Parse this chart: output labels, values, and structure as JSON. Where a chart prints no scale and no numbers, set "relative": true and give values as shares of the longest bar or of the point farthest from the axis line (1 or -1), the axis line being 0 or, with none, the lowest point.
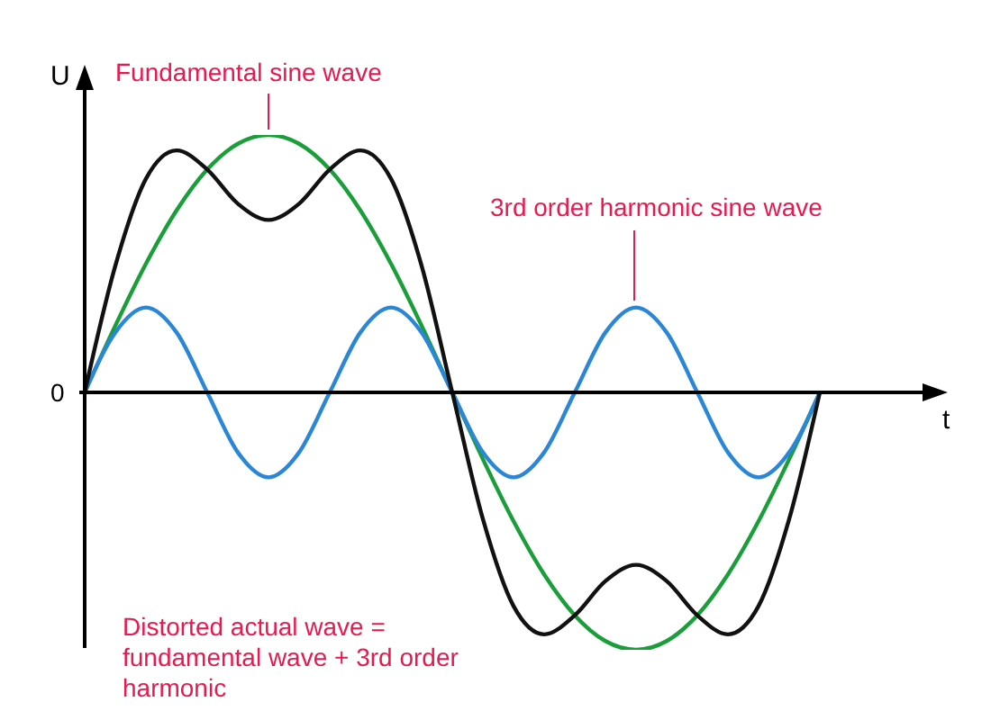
{
  "chart_data": {
    "type": "line",
    "relative": true,
    "xlabel": "t",
    "ylabel": "U",
    "annotations": [
      "0",
      "Fundamental sine wave",
      "3rd order harmonic sine wave",
      "Distorted actual wave = fundamental wave + 3rd order harmonic"
    ],
    "categories": [
      null,
      null,
      null,
      null,
      null,
      null,
      null,
      null,
      null,
      null,
      null,
      null,
      null,
      null,
      null,
      null,
      null,
      null,
      null,
      null,
      null,
      null,
      null,
      null,
      null
    ],
    "series": [
      {
        "color": "#1a9e3a",
        "values": [
          0,
          0.259,
          0.5,
          0.707,
          0.866,
          0.966,
          1,
          0.966,
          0.866,
          0.707,
          0.5,
          0.259,
          0,
          -0.259,
          -0.5,
          -0.707,
          -0.866,
          -0.966,
          -1,
          -0.966,
          -0.866,
          -0.707,
          -0.5,
          -0.259,
          0
        ]
      },
      {
        "color": "#2a86d6",
        "values": [
          0,
          0.233,
          0.33,
          0.233,
          0,
          -0.233,
          -0.33,
          -0.233,
          0,
          0.233,
          0.33,
          0.233,
          0,
          -0.233,
          -0.33,
          -0.233,
          0,
          0.233,
          0.33,
          0.233,
          0,
          -0.233,
          -0.33,
          -0.233,
          0
        ]
      },
      {
        "color": "#111111",
        "values": [
          0,
          0.492,
          0.83,
          0.94,
          0.866,
          0.733,
          0.67,
          0.733,
          0.866,
          0.94,
          0.83,
          0.492,
          0,
          -0.492,
          -0.83,
          -0.94,
          -0.866,
          -0.733,
          -0.67,
          -0.733,
          -0.866,
          -0.94,
          -0.83,
          -0.492,
          0
        ]
      }
    ]
  }
}
